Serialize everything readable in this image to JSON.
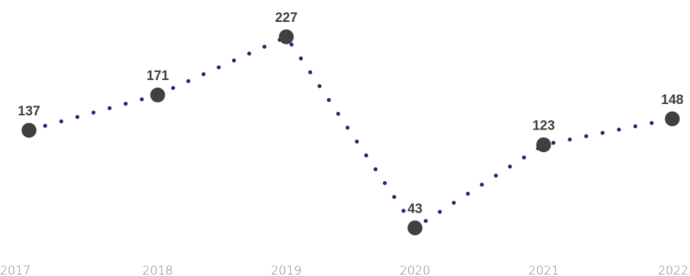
{
  "chart_data": {
    "type": "line",
    "categories": [
      "2017",
      "2018",
      "2019",
      "2020",
      "2021",
      "2022"
    ],
    "values": [
      137,
      171,
      227,
      43,
      123,
      148
    ],
    "title": "",
    "xlabel": "",
    "ylabel": "",
    "ylim": [
      43,
      227
    ],
    "grid": false,
    "legend": "none",
    "line_style": "dotted",
    "colors": {
      "line": "#1f2a6b",
      "marker": "#404040",
      "data_label": "#3d3d3d",
      "tick_label": "#7a7a7a"
    }
  }
}
